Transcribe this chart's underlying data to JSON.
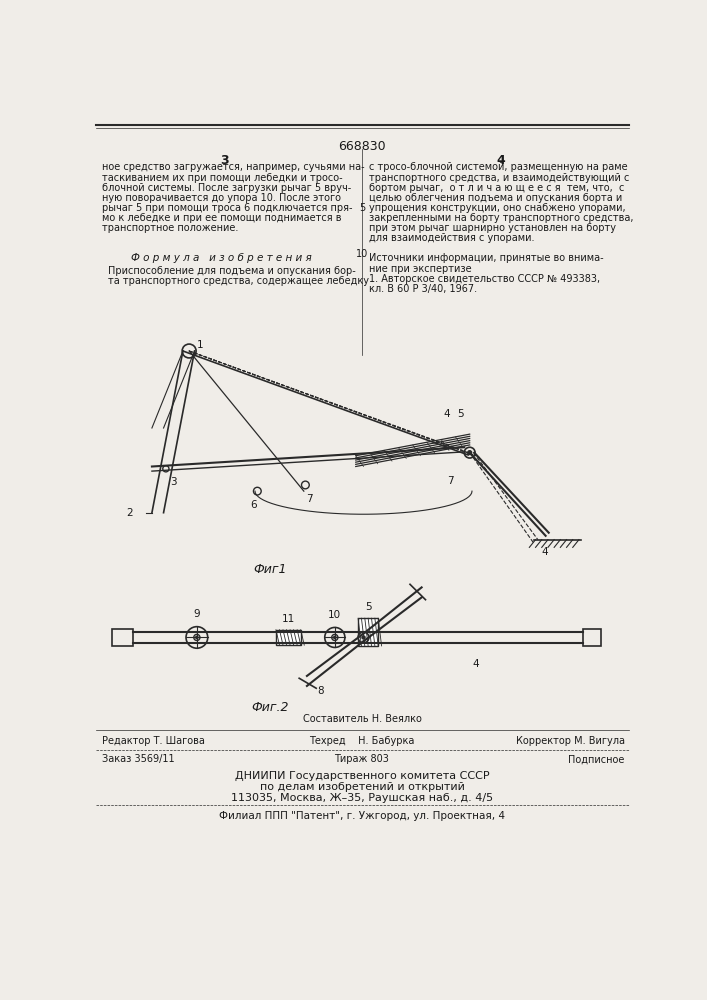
{
  "patent_number": "668830",
  "col_left": "3",
  "col_right": "4",
  "text_left_col": [
    "ное средство загружается, например, сучьями на-",
    "таскиванием их при помощи лебедки и тросо-",
    "блочной системы. После загрузки рычаг 5 вруч-",
    "ную поворачивается до упора 10. После этого",
    "рычаг 5 при помощи троса 6 подключается пря-",
    "мо к лебедке и при ее помощи поднимается в",
    "транспортное положение."
  ],
  "col_center_num": "5",
  "text_right_col": [
    "с тросо-блочной системой, размещенную на раме",
    "транспортного средства, и взаимодействующий с",
    "бортом рычаг,  о т л и ч а ю щ е е с я  тем, что,  с",
    "целью облегчения подъема и опускания борта и",
    "упрощения конструкции, оно снабжено упорами,",
    "закрепленными на борту транспортного средства,",
    "при этом рычаг шарнирно установлен на борту",
    "для взаимодействия с упорами."
  ],
  "col_center_num2": "10",
  "formula_title": "Ф о р м у л а   и з о б р е т е н и я",
  "formula_text": [
    "Приспособление для подъема и опускания бор-",
    "та транспортного средства, содержащее лебедку"
  ],
  "sources_title": "Источники информации, принятые во внима-",
  "sources_text": [
    "ние при экспертизе",
    "1. Авторское свидетельство СССР № 493383,",
    "кл. В 60 Р 3/40, 1967."
  ],
  "fig1_caption": "Фиг1",
  "fig2_caption": "Фиг.2",
  "editor_label": "Редактор Т. Шагова",
  "composer_label": "Составитель Н. Веялко",
  "corrector_label": "Корректор М. Вигула",
  "tech_label": "Техред    Н. Бабурка",
  "order_label": "Заказ 3569/11",
  "tirazh_label": "Тираж 803",
  "podpisnoe_label": "Подписное",
  "org_line1": "ДНИИПИ Государственного комитета СССР",
  "org_line2": "по делам изобретений и открытий",
  "org_line3": "113035, Москва, Ж–35, Раушская наб., д. 4/5",
  "filial_line": "Филиал ППП \"Патент\", г. Ужгород, ул. Проектная, 4",
  "bg_color": "#f0ede8",
  "text_color": "#1a1a1a",
  "line_color": "#2a2a2a"
}
